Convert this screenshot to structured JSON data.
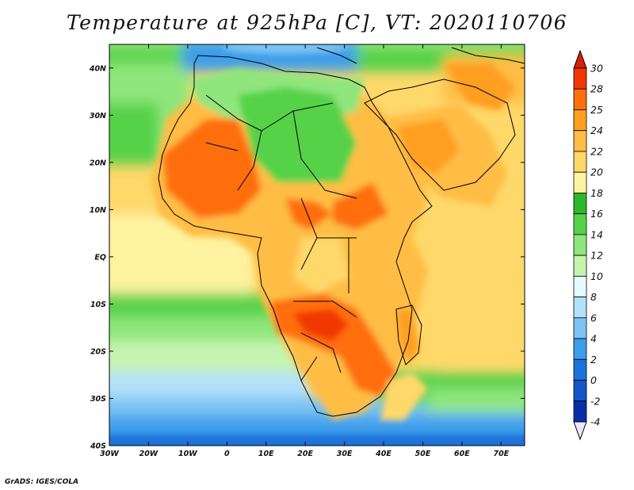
{
  "title": "Temperature at 925hPa [C], VT: 2020110706",
  "footer": "GrADS: IGES/COLA",
  "map": {
    "lon_range": [
      -30,
      76
    ],
    "lat_range": [
      -40,
      45
    ],
    "x_ticks": [
      "30W",
      "20W",
      "10W",
      "0",
      "10E",
      "20E",
      "30E",
      "40E",
      "50E",
      "60E",
      "70E"
    ],
    "x_tick_values": [
      -30,
      -20,
      -10,
      0,
      10,
      20,
      30,
      40,
      50,
      60,
      70
    ],
    "y_ticks": [
      "40N",
      "30N",
      "20N",
      "10N",
      "EQ",
      "10S",
      "20S",
      "30S",
      "40S"
    ],
    "y_tick_values": [
      40,
      30,
      20,
      10,
      0,
      -10,
      -20,
      -30,
      -40
    ]
  },
  "colorbar": {
    "labels": [
      "30",
      "28",
      "25",
      "24",
      "22",
      "20",
      "18",
      "16",
      "14",
      "12",
      "10",
      "8",
      "6",
      "4",
      "2",
      "0",
      "-2",
      "-4"
    ],
    "colors": [
      "#f03800",
      "#ff6e0c",
      "#ff9f20",
      "#ffbd45",
      "#ffd86a",
      "#fff2a0",
      "#2cb829",
      "#56d24a",
      "#8fe67b",
      "#c4f4b0",
      "#e6fbff",
      "#b3e1fa",
      "#7cc4f3",
      "#3c9dea",
      "#1c72dc",
      "#1554c9",
      "#0a2ea8"
    ],
    "top_color": "#d92000",
    "bottom_color": "#e8e8ff"
  }
}
